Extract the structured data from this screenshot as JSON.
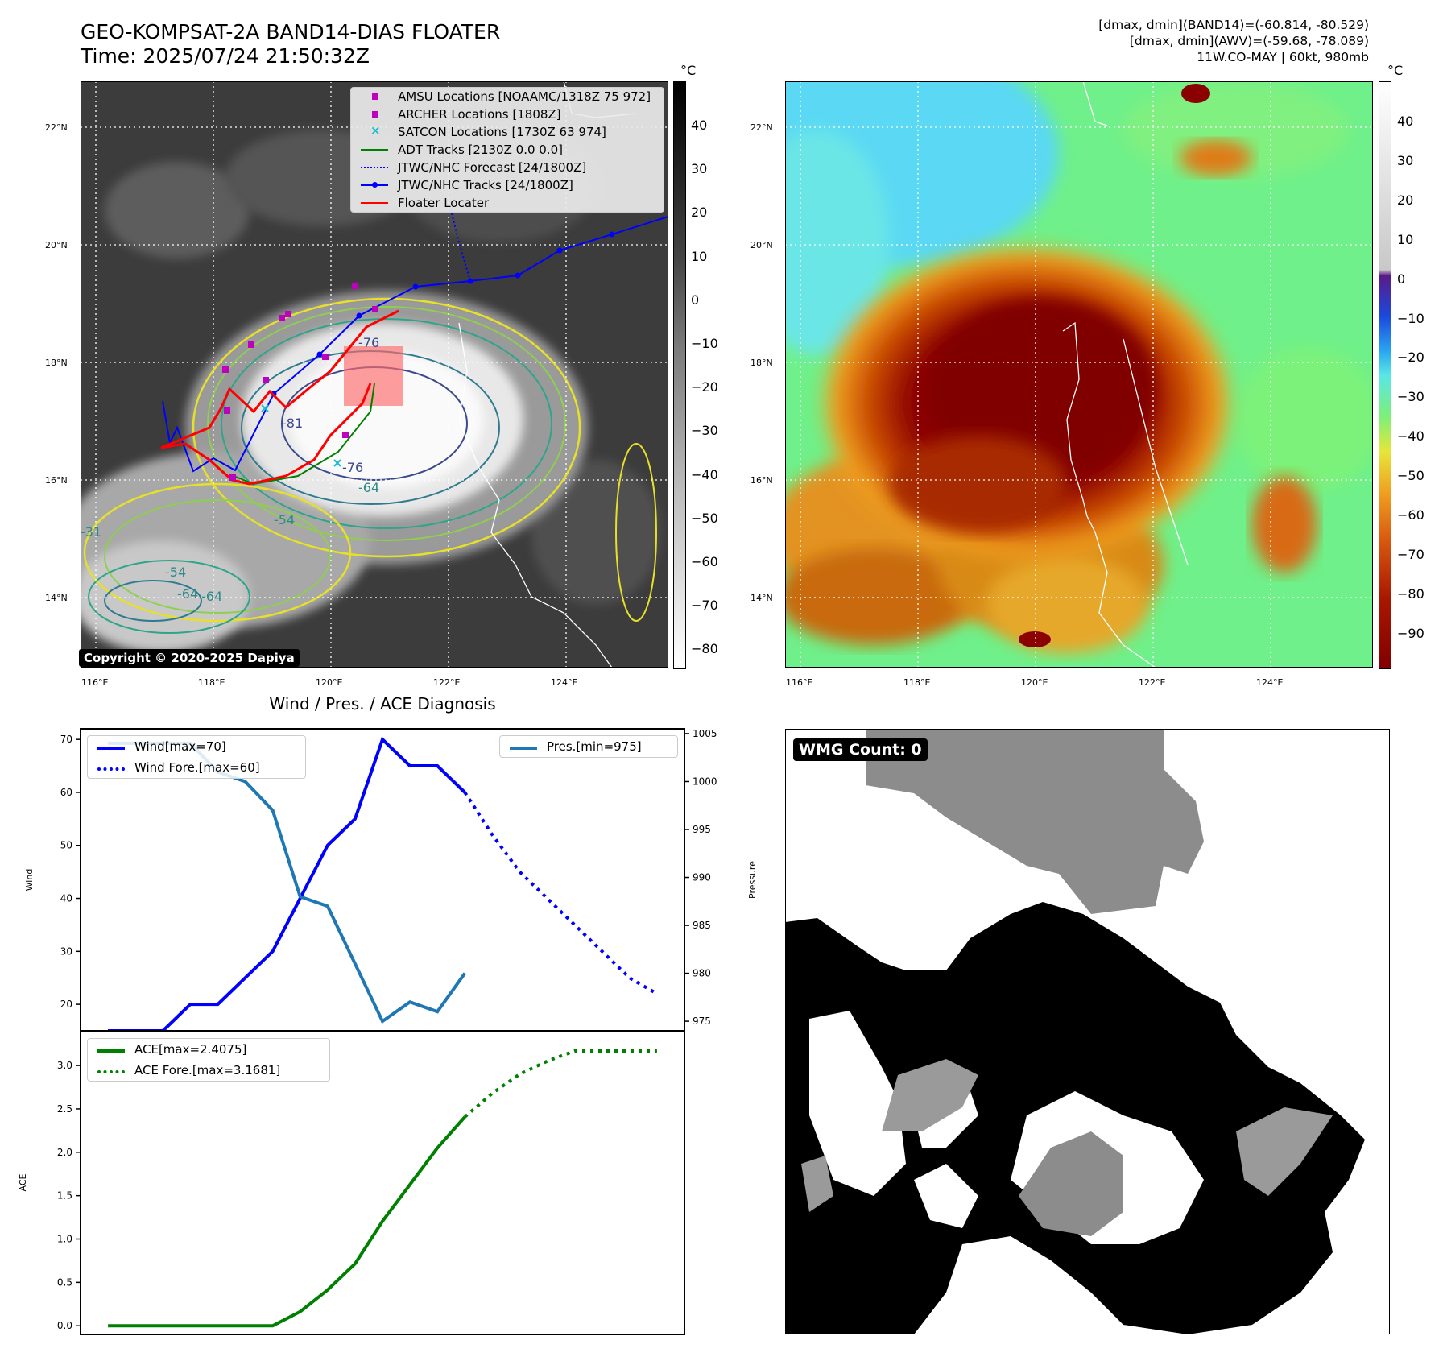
{
  "header": {
    "title_line1": "GEO-KOMPSAT-2A BAND14-DIAS FLOATER",
    "title_line2": "Time: 2025/07/24 21:50:32Z",
    "right_line1": "[dmax, dmin](BAND14)=(-60.814, -80.529)",
    "right_line2": "[dmax, dmin](AWV)=(-59.68, -78.089)",
    "right_line3": "11W.CO-MAY | 60kt, 980mb"
  },
  "map_axes": {
    "lat_ticks": [
      "22°N",
      "20°N",
      "18°N",
      "16°N",
      "14°N"
    ],
    "lon_ticks": [
      "116°E",
      "118°E",
      "120°E",
      "122°E",
      "124°E"
    ]
  },
  "colorbar_left": {
    "unit": "°C",
    "ticks": [
      "40",
      "30",
      "20",
      "10",
      "0",
      "−10",
      "−20",
      "−30",
      "−40",
      "−50",
      "−60",
      "−70",
      "−80"
    ]
  },
  "colorbar_right": {
    "unit": "°C",
    "ticks": [
      "40",
      "30",
      "20",
      "10",
      "0",
      "−10",
      "−20",
      "−30",
      "−40",
      "−50",
      "−60",
      "−70",
      "−80",
      "−90"
    ]
  },
  "map_legend": [
    {
      "label": "AMSU Locations [NOAAMC/1318Z 75 972]",
      "marker": "square",
      "color": "#bf00bf"
    },
    {
      "label": "ARCHER Locations [1808Z]",
      "marker": "square",
      "color": "#bf00bf"
    },
    {
      "label": "SATCON Locations [1730Z 63 974]",
      "marker": "x",
      "color": "#17becf"
    },
    {
      "label": "ADT Tracks [2130Z 0.0 0.0]",
      "marker": "line",
      "color": "#008000"
    },
    {
      "label": "JTWC/NHC Forecast [24/1800Z]",
      "marker": "dotted",
      "color": "#0000ff"
    },
    {
      "label": "JTWC/NHC Tracks [24/1800Z]",
      "marker": "line-dot",
      "color": "#0000ff"
    },
    {
      "label": "Floater Locater",
      "marker": "line",
      "color": "#ff0000"
    }
  ],
  "contour_labels": [
    "-76",
    "-76",
    "-76",
    "-64",
    "-54",
    "-54",
    "-64",
    "-31",
    "-54",
    "-64",
    "-81"
  ],
  "copyright": "Copyright © 2020-2025 Dapiya",
  "wmg": "WMG Count: 0",
  "diag_title": "Wind / Pres. / ACE Diagnosis",
  "chart_data": [
    {
      "type": "line",
      "title": "Wind / Pres. / ACE Diagnosis",
      "ylabel": "Wind",
      "ylabel_right": "Pressure",
      "ylim": [
        15,
        72
      ],
      "ylim_right": [
        974,
        1005.5
      ],
      "xlim": [
        -1,
        21
      ],
      "yticks": [
        20,
        30,
        40,
        50,
        60,
        70
      ],
      "yticks_right": [
        975,
        980,
        985,
        990,
        995,
        1000,
        1005
      ],
      "series": [
        {
          "name": "Wind[max=70]",
          "axis": "left",
          "style": "solid",
          "color": "#0000ff",
          "x": [
            0,
            1,
            2,
            3,
            4,
            5,
            6,
            7,
            8,
            9,
            10,
            11,
            12,
            13
          ],
          "values": [
            15,
            15,
            15,
            20,
            20,
            25,
            30,
            40,
            50,
            55,
            70,
            65,
            65,
            60
          ]
        },
        {
          "name": "Wind Fore.[max=60]",
          "axis": "left",
          "style": "dotted",
          "color": "#0000ff",
          "x": [
            13,
            14,
            15,
            16,
            17,
            18,
            19,
            20
          ],
          "values": [
            60,
            52,
            45,
            40,
            35,
            30,
            25,
            22
          ]
        },
        {
          "name": "Pres.[min=975]",
          "axis": "right",
          "style": "solid",
          "color": "#1f77b4",
          "x": [
            0,
            1,
            2,
            3,
            4,
            5,
            6,
            7,
            8,
            9,
            10,
            11,
            12,
            13
          ],
          "values": [
            1004,
            1004,
            1004,
            1004,
            1001,
            1000,
            997,
            988,
            987,
            981,
            975,
            977,
            976,
            980
          ]
        }
      ]
    },
    {
      "type": "line",
      "ylabel": "ACE",
      "ylim": [
        -0.1,
        3.4
      ],
      "xlim": [
        -1,
        21
      ],
      "yticks": [
        0.0,
        0.5,
        1.0,
        1.5,
        2.0,
        2.5,
        3.0
      ],
      "ytick_labels": [
        "0.0",
        "0.5",
        "1.0",
        "1.5",
        "2.0",
        "2.5",
        "3.0"
      ],
      "series": [
        {
          "name": "ACE[max=2.4075]",
          "style": "solid",
          "color": "#008000",
          "x": [
            0,
            1,
            2,
            3,
            4,
            5,
            6,
            7,
            8,
            9,
            10,
            11,
            12,
            13
          ],
          "values": [
            0,
            0,
            0,
            0,
            0,
            0,
            0,
            0.1625,
            0.4125,
            0.715,
            1.205,
            1.6275,
            2.05,
            2.4075
          ]
        },
        {
          "name": "ACE Fore.[max=3.1681]",
          "style": "dotted",
          "color": "#008000",
          "x": [
            13,
            14,
            15,
            16,
            17,
            18,
            19,
            20
          ],
          "values": [
            2.4075,
            2.68,
            2.9,
            3.05,
            3.1681,
            3.1681,
            3.1681,
            3.1681
          ]
        }
      ]
    }
  ]
}
